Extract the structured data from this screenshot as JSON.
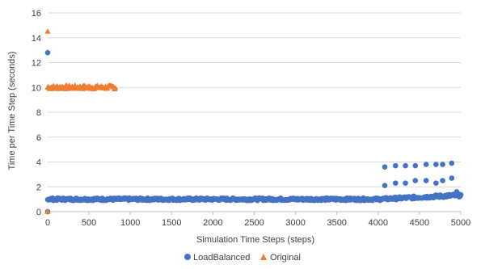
{
  "chart_data": {
    "type": "scatter",
    "title": "",
    "xlabel": "Simulation Time Steps (steps)",
    "ylabel": "Time per Time Step (seconds)",
    "xlim": [
      0,
      5000
    ],
    "ylim": [
      0,
      16
    ],
    "x_ticks": [
      "0",
      "500",
      "1000",
      "1500",
      "2000",
      "2500",
      "3000",
      "3500",
      "4000",
      "4500",
      "5000"
    ],
    "y_ticks": [
      "0",
      "2",
      "4",
      "6",
      "8",
      "10",
      "12",
      "14",
      "16"
    ],
    "grid": "horizontal",
    "legend_position": "bottom",
    "series": [
      {
        "name": "LoadBalanced",
        "marker": "circle",
        "color": "#4472C4",
        "baseline": {
          "x_range": [
            0,
            5000
          ],
          "y_low": 0.9,
          "y_high": 1.1,
          "rise_from_x": 4000,
          "y_end": 1.3
        },
        "points": [
          {
            "x": 0,
            "y": 12.8
          },
          {
            "x": 0,
            "y": 0.0
          },
          {
            "x": 4080,
            "y": 2.1
          },
          {
            "x": 4080,
            "y": 3.6
          },
          {
            "x": 4210,
            "y": 2.3
          },
          {
            "x": 4210,
            "y": 3.7
          },
          {
            "x": 4330,
            "y": 2.3
          },
          {
            "x": 4330,
            "y": 3.7
          },
          {
            "x": 4450,
            "y": 2.5
          },
          {
            "x": 4450,
            "y": 3.7
          },
          {
            "x": 4580,
            "y": 2.5
          },
          {
            "x": 4580,
            "y": 3.8
          },
          {
            "x": 4700,
            "y": 2.3
          },
          {
            "x": 4700,
            "y": 3.8
          },
          {
            "x": 4780,
            "y": 2.5
          },
          {
            "x": 4780,
            "y": 3.8
          },
          {
            "x": 4890,
            "y": 2.7
          },
          {
            "x": 4890,
            "y": 3.9
          },
          {
            "x": 4950,
            "y": 1.6
          }
        ]
      },
      {
        "name": "Original",
        "marker": "triangle",
        "color": "#ED7D31",
        "baseline": {
          "x_range": [
            0,
            820
          ],
          "y_low": 9.85,
          "y_high": 10.15
        },
        "points": [
          {
            "x": 0,
            "y": 14.5
          },
          {
            "x": 0,
            "y": 0.0
          }
        ]
      }
    ]
  }
}
